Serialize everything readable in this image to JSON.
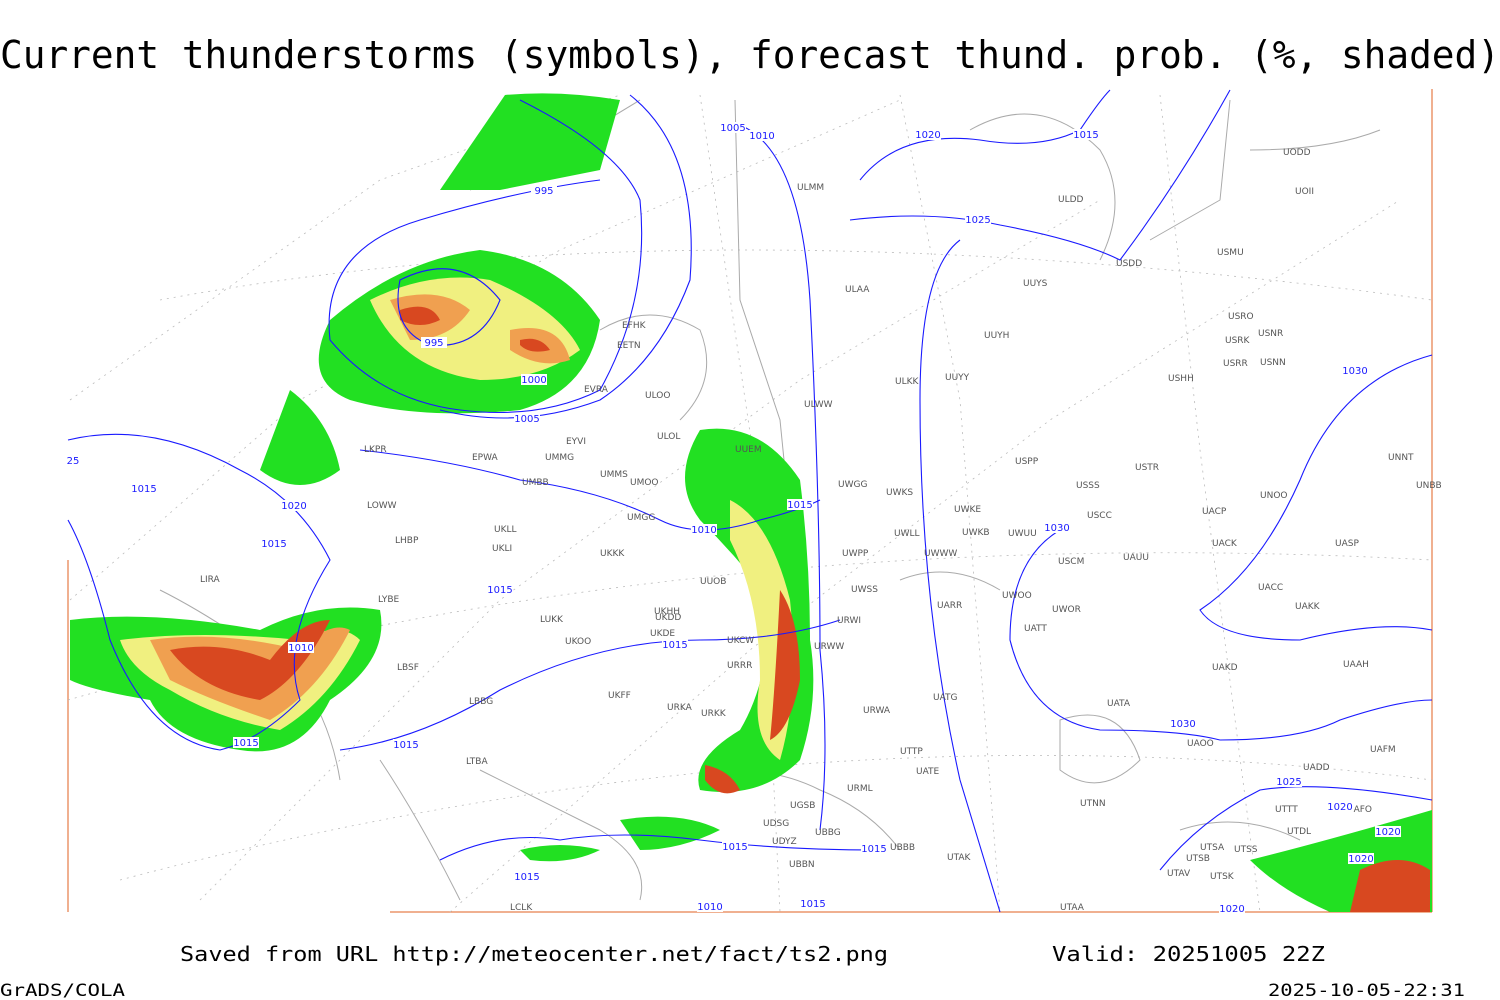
{
  "header": {
    "title": "Current thunderstorms (symbols), forecast thund. prob. (%, shaded)"
  },
  "stations": [
    "ULMM",
    "ULDD",
    "UODD",
    "UOII",
    "USDD",
    "USMU",
    "ULAA",
    "UUYS",
    "USRO",
    "USRK",
    "USNR",
    "USRR",
    "USNN",
    "UUYH",
    "EFHK",
    "EETN",
    "UUYY",
    "ULKK",
    "USHH",
    "EVRA",
    "ULOO",
    "ULWW",
    "EYVI",
    "ULOL",
    "UUEM",
    "EPWA",
    "UMMG",
    "UMMS",
    "UMOO",
    "UMBB",
    "UWGG",
    "UWKS",
    "USPP",
    "USTR",
    "USSS",
    "UNOO",
    "UNBB",
    "UNNT",
    "UWKE",
    "USCC",
    "UACP",
    "UWKB",
    "UWUU",
    "UWLL",
    "UWWW",
    "UMGG",
    "UKLL",
    "UKLI",
    "UKKK",
    "UWPP",
    "USCM",
    "UAUU",
    "UACK",
    "UASP",
    "UUOB",
    "UWSS",
    "UACC",
    "UAKK",
    "UARR",
    "UWOO",
    "UWOR",
    "LUKK",
    "UKHH",
    "UKDD",
    "UKOO",
    "UKDE",
    "UKCW",
    "URWW",
    "URWI",
    "UATT",
    "UAKD",
    "UAAH",
    "LBSF",
    "URRR",
    "UKFF",
    "LBBG",
    "URKA",
    "URKK",
    "UATG",
    "URWA",
    "UATA",
    "UAOO",
    "UAFM",
    "UTTP",
    "UATE",
    "UADD",
    "LTBA",
    "URML",
    "UTNN",
    "UTTT",
    "UAFO",
    "UGSB",
    "UDSG",
    "UTDL",
    "UBBG",
    "UDYZ",
    "UBBB",
    "UTSA",
    "UTSS",
    "UTAK",
    "UTSB",
    "UBBN",
    "UTAV",
    "UTSK",
    "UTAA",
    "LCLK",
    "LHBP",
    "LKPR",
    "LOWW",
    "LIRA",
    "LYBE"
  ],
  "isobar_labels": [
    "1005",
    "1010",
    "1015",
    "1020",
    "995",
    "1025",
    "995",
    "1000",
    "1005",
    "1030",
    "1015",
    "1020",
    "1015",
    "1010",
    "1030",
    "1015",
    "1015",
    "1010",
    "1015",
    "1015",
    "1015",
    "1030",
    "1025",
    "1020",
    "1020",
    "1020",
    "1015",
    "1015",
    "1015",
    "1010",
    "1015",
    "1020",
    "25"
  ],
  "footer": {
    "saved": "Saved from URL http://meteocenter.net/fact/ts2.png",
    "valid": "Valid: 20251005 22Z",
    "software": "GrADS/COLA",
    "timestamp": "2025-10-05-22:31"
  }
}
